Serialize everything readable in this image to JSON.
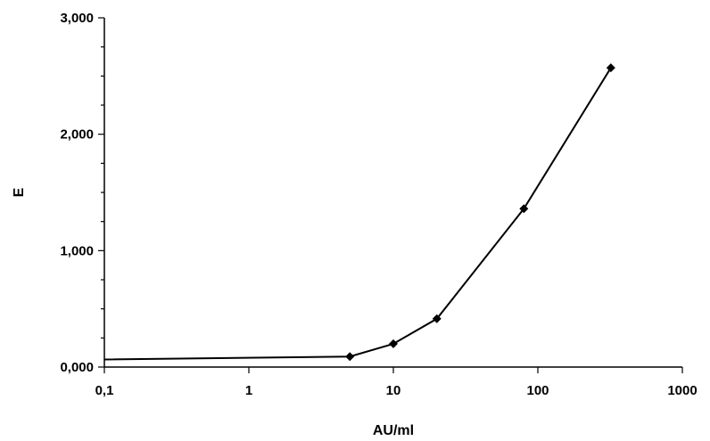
{
  "chart_data": {
    "type": "scatter",
    "title": "",
    "xlabel": "AU/ml",
    "ylabel": "E",
    "x_scale": "log",
    "xlim": [
      0.1,
      1000
    ],
    "ylim": [
      0,
      3
    ],
    "x_ticks": [
      0.1,
      1,
      10,
      100,
      1000
    ],
    "x_tick_labels": [
      "0,1",
      "1",
      "10",
      "100",
      "1000"
    ],
    "y_ticks": [
      0,
      1,
      2,
      3
    ],
    "y_tick_labels": [
      "0,000",
      "1,000",
      "2,000",
      "3,000"
    ],
    "grid": false,
    "legend": "none",
    "series": [
      {
        "x": [
          0.1,
          5,
          10,
          20,
          80,
          320
        ],
        "y": [
          0.065,
          0.09,
          0.2,
          0.415,
          1.36,
          2.57
        ],
        "markers": [
          false,
          true,
          true,
          true,
          true,
          true
        ],
        "color": "#000000",
        "marker": "diamond"
      }
    ]
  }
}
